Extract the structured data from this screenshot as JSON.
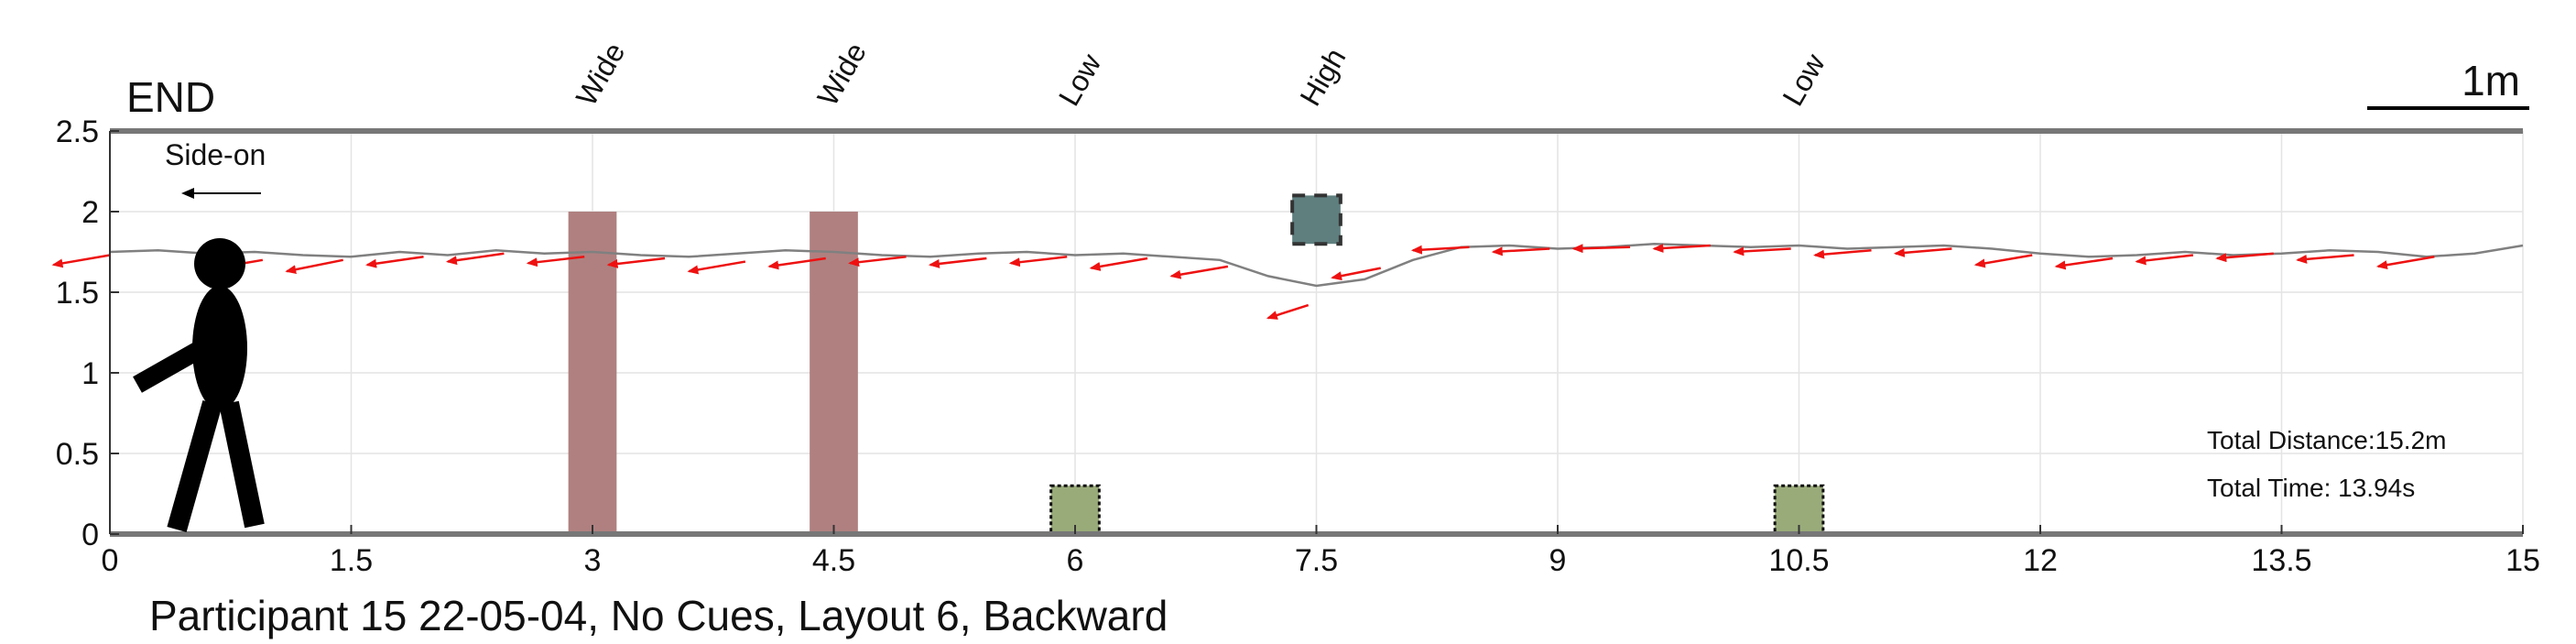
{
  "chart_data": {
    "type": "line",
    "title": "Participant 15 22-05-04, No Cues, Layout 6, Backward",
    "end_label": "END",
    "direction_label": "Side-on",
    "scale_label": "1m",
    "xlim": [
      0,
      15
    ],
    "ylim": [
      0,
      2.5
    ],
    "x_ticks": [
      0,
      1.5,
      3,
      4.5,
      6,
      7.5,
      9,
      10.5,
      12,
      13.5,
      15
    ],
    "x_tick_labels": [
      "0",
      "1.5",
      "3",
      "4.5",
      "6",
      "7.5",
      "9",
      "10.5",
      "12",
      "13.5",
      "15"
    ],
    "y_ticks": [
      0,
      0.5,
      1,
      1.5,
      2,
      2.5
    ],
    "y_tick_labels": [
      "0",
      "0.5",
      "1",
      "1.5",
      "2",
      "2.5"
    ],
    "grid": true,
    "obstacles": [
      {
        "label": "Wide",
        "type": "wide",
        "x0": 2.85,
        "x1": 3.15,
        "y0": 0,
        "y1": 2.0,
        "color": "#b08080"
      },
      {
        "label": "Wide",
        "type": "wide",
        "x0": 4.35,
        "x1": 4.65,
        "y0": 0,
        "y1": 2.0,
        "color": "#b08080"
      },
      {
        "label": "Low",
        "type": "low",
        "x0": 5.85,
        "x1": 6.15,
        "y0": 0,
        "y1": 0.3,
        "color": "#9aab7a"
      },
      {
        "label": "High",
        "type": "high",
        "x0": 7.35,
        "x1": 7.65,
        "y0": 1.8,
        "y1": 2.1,
        "color": "#5f7f7f"
      },
      {
        "label": "Low",
        "type": "low",
        "x0": 10.35,
        "x1": 10.65,
        "y0": 0,
        "y1": 0.3,
        "color": "#9aab7a"
      }
    ],
    "series": [
      {
        "name": "path",
        "color": "#808080",
        "x": [
          0.0,
          0.3,
          0.6,
          0.9,
          1.2,
          1.5,
          1.8,
          2.1,
          2.4,
          2.7,
          3.0,
          3.3,
          3.6,
          3.9,
          4.2,
          4.5,
          4.8,
          5.1,
          5.4,
          5.7,
          6.0,
          6.3,
          6.6,
          6.9,
          7.2,
          7.5,
          7.8,
          8.1,
          8.4,
          8.7,
          9.0,
          9.3,
          9.6,
          9.9,
          10.2,
          10.5,
          10.8,
          11.1,
          11.4,
          11.7,
          12.0,
          12.3,
          12.6,
          12.9,
          13.2,
          13.5,
          13.8,
          14.1,
          14.4,
          14.7,
          15.0
        ],
        "y": [
          1.75,
          1.76,
          1.74,
          1.75,
          1.73,
          1.72,
          1.75,
          1.73,
          1.76,
          1.74,
          1.75,
          1.73,
          1.72,
          1.74,
          1.76,
          1.75,
          1.73,
          1.72,
          1.74,
          1.75,
          1.73,
          1.74,
          1.72,
          1.7,
          1.6,
          1.54,
          1.58,
          1.7,
          1.78,
          1.79,
          1.77,
          1.78,
          1.8,
          1.79,
          1.78,
          1.79,
          1.77,
          1.78,
          1.79,
          1.77,
          1.74,
          1.72,
          1.73,
          1.75,
          1.73,
          1.74,
          1.76,
          1.75,
          1.72,
          1.74,
          1.79
        ]
      }
    ],
    "arrows": [
      {
        "x": 0.0,
        "y": 1.73,
        "dx": -0.35,
        "dy": -0.06
      },
      {
        "x": 0.95,
        "y": 1.7,
        "dx": -0.35,
        "dy": -0.06
      },
      {
        "x": 1.45,
        "y": 1.7,
        "dx": -0.35,
        "dy": -0.07
      },
      {
        "x": 1.95,
        "y": 1.72,
        "dx": -0.35,
        "dy": -0.05
      },
      {
        "x": 2.45,
        "y": 1.74,
        "dx": -0.35,
        "dy": -0.05
      },
      {
        "x": 2.95,
        "y": 1.72,
        "dx": -0.35,
        "dy": -0.04
      },
      {
        "x": 3.45,
        "y": 1.71,
        "dx": -0.35,
        "dy": -0.04
      },
      {
        "x": 3.95,
        "y": 1.69,
        "dx": -0.35,
        "dy": -0.06
      },
      {
        "x": 4.45,
        "y": 1.71,
        "dx": -0.35,
        "dy": -0.05
      },
      {
        "x": 4.95,
        "y": 1.72,
        "dx": -0.35,
        "dy": -0.04
      },
      {
        "x": 5.45,
        "y": 1.71,
        "dx": -0.35,
        "dy": -0.04
      },
      {
        "x": 5.95,
        "y": 1.72,
        "dx": -0.35,
        "dy": -0.04
      },
      {
        "x": 6.45,
        "y": 1.71,
        "dx": -0.35,
        "dy": -0.06
      },
      {
        "x": 6.95,
        "y": 1.66,
        "dx": -0.35,
        "dy": -0.06
      },
      {
        "x": 7.45,
        "y": 1.42,
        "dx": -0.25,
        "dy": -0.08
      },
      {
        "x": 7.9,
        "y": 1.65,
        "dx": -0.3,
        "dy": -0.06
      },
      {
        "x": 8.45,
        "y": 1.78,
        "dx": -0.35,
        "dy": -0.02
      },
      {
        "x": 8.95,
        "y": 1.77,
        "dx": -0.35,
        "dy": -0.02
      },
      {
        "x": 9.45,
        "y": 1.78,
        "dx": -0.35,
        "dy": -0.01
      },
      {
        "x": 9.95,
        "y": 1.79,
        "dx": -0.35,
        "dy": -0.02
      },
      {
        "x": 10.45,
        "y": 1.77,
        "dx": -0.35,
        "dy": -0.02
      },
      {
        "x": 10.95,
        "y": 1.76,
        "dx": -0.35,
        "dy": -0.03
      },
      {
        "x": 11.45,
        "y": 1.77,
        "dx": -0.35,
        "dy": -0.03
      },
      {
        "x": 11.95,
        "y": 1.73,
        "dx": -0.35,
        "dy": -0.06
      },
      {
        "x": 12.45,
        "y": 1.71,
        "dx": -0.35,
        "dy": -0.05
      },
      {
        "x": 12.95,
        "y": 1.73,
        "dx": -0.35,
        "dy": -0.04
      },
      {
        "x": 13.45,
        "y": 1.74,
        "dx": -0.35,
        "dy": -0.03
      },
      {
        "x": 13.95,
        "y": 1.73,
        "dx": -0.35,
        "dy": -0.03
      },
      {
        "x": 14.45,
        "y": 1.72,
        "dx": -0.35,
        "dy": -0.06
      }
    ],
    "stats": {
      "distance": "Total Distance:15.2m",
      "time": "Total Time: 13.94s"
    }
  }
}
